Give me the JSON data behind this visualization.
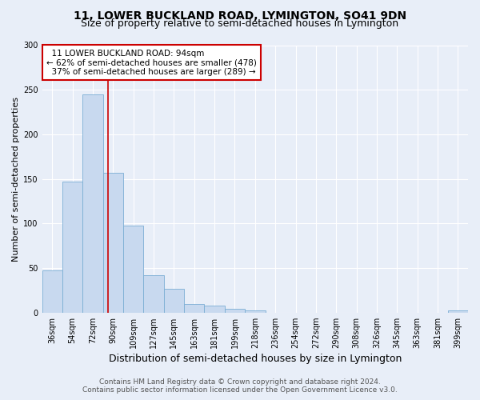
{
  "title_line1": "11, LOWER BUCKLAND ROAD, LYMINGTON, SO41 9DN",
  "title_line2": "Size of property relative to semi-detached houses in Lymington",
  "xlabel": "Distribution of semi-detached houses by size in Lymington",
  "ylabel": "Number of semi-detached properties",
  "categories": [
    "36sqm",
    "54sqm",
    "72sqm",
    "90sqm",
    "109sqm",
    "127sqm",
    "145sqm",
    "163sqm",
    "181sqm",
    "199sqm",
    "218sqm",
    "236sqm",
    "254sqm",
    "272sqm",
    "290sqm",
    "308sqm",
    "326sqm",
    "345sqm",
    "363sqm",
    "381sqm",
    "399sqm"
  ],
  "values": [
    47,
    147,
    245,
    157,
    98,
    42,
    27,
    10,
    8,
    4,
    2,
    0,
    0,
    0,
    0,
    0,
    0,
    0,
    0,
    0,
    2
  ],
  "bar_color": "#c8d9ef",
  "bar_edge_color": "#7baed4",
  "red_line_x": 2.75,
  "property_label": "11 LOWER BUCKLAND ROAD: 94sqm",
  "pct_smaller": 62,
  "pct_smaller_count": 478,
  "pct_larger": 37,
  "pct_larger_count": 289,
  "red_line_color": "#cc0000",
  "annotation_box_edge_color": "#cc0000",
  "annotation_box_face_color": "#ffffff",
  "ylim": [
    0,
    300
  ],
  "yticks": [
    0,
    50,
    100,
    150,
    200,
    250,
    300
  ],
  "background_color": "#e8eef8",
  "grid_color": "#ffffff",
  "footer_line1": "Contains HM Land Registry data © Crown copyright and database right 2024.",
  "footer_line2": "Contains public sector information licensed under the Open Government Licence v3.0.",
  "title_fontsize": 10,
  "subtitle_fontsize": 9,
  "xlabel_fontsize": 9,
  "ylabel_fontsize": 8,
  "tick_fontsize": 7,
  "annotation_fontsize": 7.5,
  "footer_fontsize": 6.5
}
